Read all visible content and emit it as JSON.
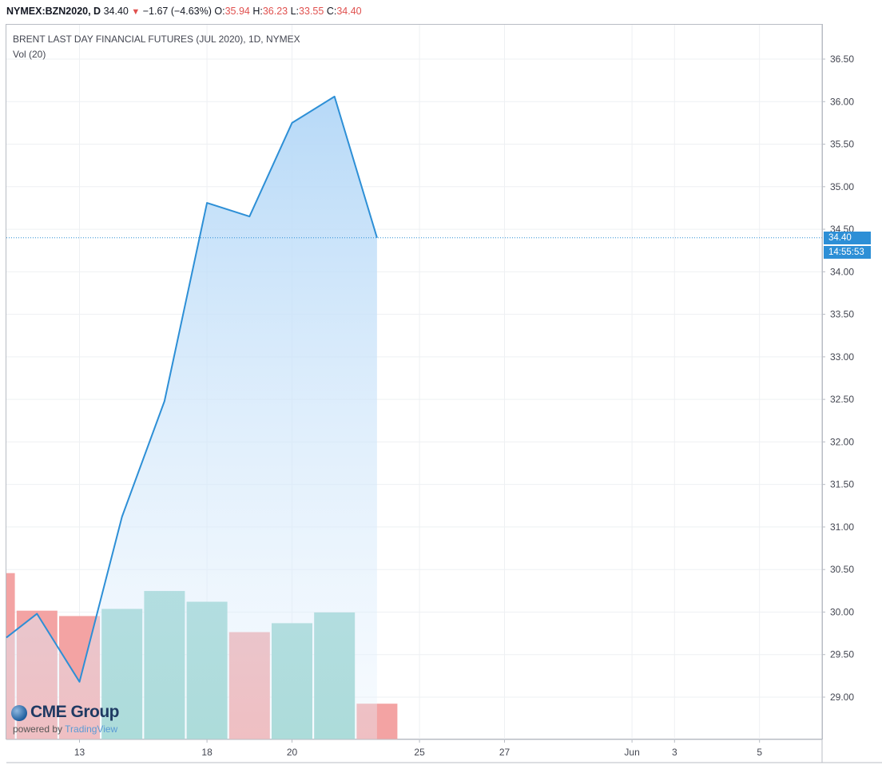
{
  "header": {
    "symbol": "NYMEX:BZN2020, D",
    "last": "34.40",
    "change": "−1.67 (−4.63%)",
    "open_label": "O:",
    "open": "35.94",
    "high_label": "H:",
    "high": "36.23",
    "low_label": "L:",
    "low": "33.55",
    "close_label": "C:",
    "close": "34.40"
  },
  "legend": {
    "title": "BRENT LAST DAY FINANCIAL FUTURES (JUL 2020), 1D, NYMEX",
    "volume": "Vol (20)"
  },
  "price_tag": {
    "last": "34.40",
    "countdown": "14:55:53"
  },
  "branding": {
    "name": "CME Group",
    "powered_by": "powered by",
    "platform": "TradingView"
  },
  "colors": {
    "line": "#2d8fd6",
    "area_top": "#bcdcf7",
    "vol_up": "#8ccfc7",
    "vol_down": "#f3a3a3",
    "grid": "#eef0f3"
  },
  "chart_data": {
    "type": "area",
    "xtick_labels": [
      "13",
      "18",
      "20",
      "25",
      "27",
      "Jun",
      "3",
      "5"
    ],
    "yticks": [
      "29.00",
      "29.50",
      "30.00",
      "30.50",
      "31.00",
      "31.50",
      "32.00",
      "32.50",
      "33.00",
      "33.50",
      "34.00",
      "34.50",
      "35.00",
      "35.50",
      "36.00",
      "36.50"
    ],
    "ylim": [
      28.6,
      36.8
    ],
    "price_series": {
      "x": [
        "May 11",
        "May 12",
        "May 13",
        "May 14",
        "May 15",
        "May 18",
        "May 19",
        "May 20",
        "May 21",
        "May 22"
      ],
      "close": [
        29.7,
        29.98,
        29.18,
        31.12,
        32.48,
        34.81,
        34.65,
        35.75,
        36.06,
        34.4
      ]
    },
    "volume_series": {
      "x": [
        "May 11",
        "May 12",
        "May 13",
        "May 14",
        "May 15",
        "May 18",
        "May 19",
        "May 20",
        "May 21",
        "May 22"
      ],
      "direction": [
        "down",
        "down",
        "down",
        "up",
        "up",
        "up",
        "down",
        "up",
        "up",
        "down"
      ],
      "relative": [
        0.93,
        0.72,
        0.69,
        0.73,
        0.83,
        0.77,
        0.6,
        0.65,
        0.71,
        0.2
      ]
    },
    "last_price": 34.4
  }
}
